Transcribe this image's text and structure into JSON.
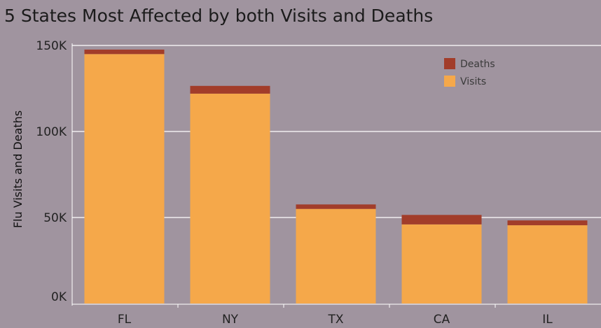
{
  "chart_data": {
    "type": "bar",
    "stacked": true,
    "title": "5 States Most Affected by both Visits and Deaths",
    "xlabel": "",
    "ylabel": "Flu Visits and Deaths",
    "categories": [
      "FL",
      "NY",
      "TX",
      "CA",
      "IL"
    ],
    "series": [
      {
        "name": "Visits",
        "values": [
          145000,
          122000,
          55000,
          46000,
          45500
        ],
        "color": "#f5a84a"
      },
      {
        "name": "Deaths",
        "values": [
          2600,
          4500,
          2600,
          5500,
          2800
        ],
        "color": "#a23d2a"
      }
    ],
    "ylim": [
      0,
      150000
    ],
    "yticks": [
      0,
      50000,
      100000,
      150000
    ],
    "ytick_labels": [
      "0K",
      "50K",
      "100K",
      "150K"
    ],
    "grid": true,
    "legend_position": "top-right"
  }
}
